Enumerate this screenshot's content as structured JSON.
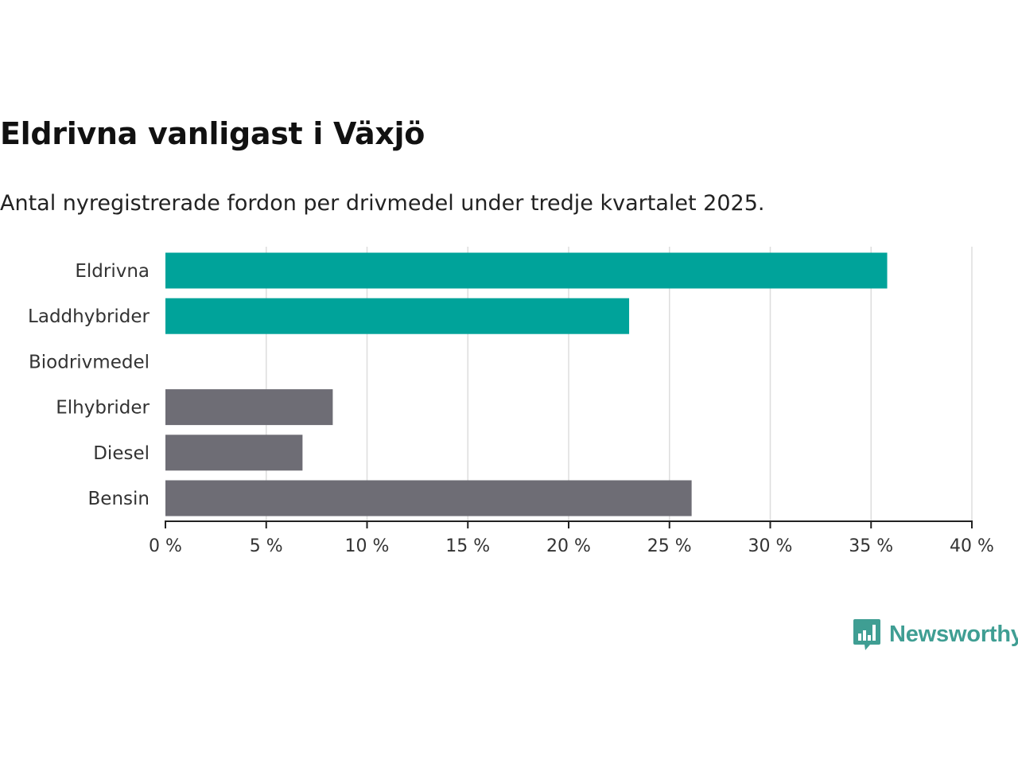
{
  "title": "Eldrivna vanligast i Växjö",
  "subtitle": "Antal nyregistrerade fordon per drivmedel under tredje kvartalet 2025.",
  "brand": {
    "name": "Newsworthy",
    "icon": "newsworthy-logo-icon",
    "color": "#3f9e93"
  },
  "colors": {
    "highlight": "#00a39a",
    "other": "#6e6d75",
    "grid": "#dddddd",
    "axis": "#222222"
  },
  "chart_data": {
    "type": "bar",
    "orientation": "horizontal",
    "title": "Eldrivna vanligast i Växjö",
    "subtitle": "Antal nyregistrerade fordon per drivmedel under tredje kvartalet 2025.",
    "xlabel": "",
    "ylabel": "",
    "categories": [
      "Eldrivna",
      "Laddhybrider",
      "Biodrivmedel",
      "Elhybrider",
      "Diesel",
      "Bensin"
    ],
    "values": [
      35.8,
      23.0,
      0,
      8.3,
      6.8,
      26.1
    ],
    "highlight": [
      true,
      true,
      true,
      false,
      false,
      false
    ],
    "xlim": [
      0,
      40
    ],
    "ticks": [
      0,
      5,
      10,
      15,
      20,
      25,
      30,
      35,
      40
    ],
    "tick_labels": [
      "0 %",
      "5 %",
      "10 %",
      "15 %",
      "20 %",
      "25 %",
      "30 %",
      "35 %",
      "40 %"
    ],
    "grid": true,
    "unit": "%"
  }
}
